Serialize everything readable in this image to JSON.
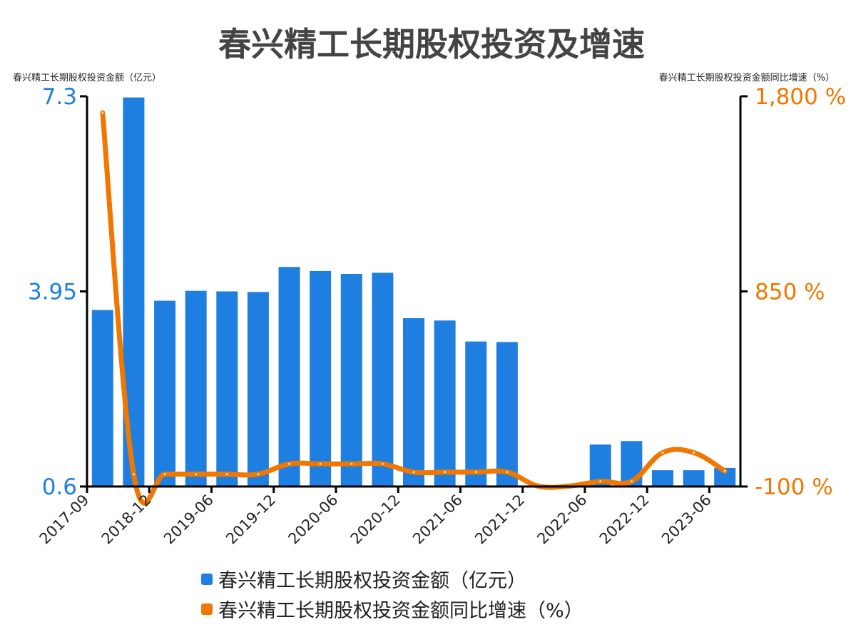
{
  "colors": {
    "bar": "#1f7fe0",
    "line": "#f07800",
    "axis": "#000000",
    "text": "#222222"
  },
  "chart_data": {
    "type": "bar",
    "title": "春兴精工长期股权投资及增速",
    "left_axis": {
      "label": "春兴精工长期股权投资金额（亿元）",
      "ylim": [
        0.6,
        7.3
      ],
      "ticks": [
        "0.6",
        "3.95",
        "7.3"
      ]
    },
    "right_axis": {
      "label": "春兴精工长期股权投资金额同比增速（%）",
      "ylim": [
        -100,
        1800
      ],
      "ticks": [
        "-100 %",
        "850 %",
        "1,800 %"
      ]
    },
    "x_tick_labels": [
      "2017-09",
      "2018-12",
      "2019-06",
      "2019-12",
      "2020-06",
      "2020-12",
      "2021-06",
      "2021-12",
      "2022-06",
      "2022-12",
      "2023-06"
    ],
    "bar_count": 21,
    "series": [
      {
        "name": "春兴精工长期股权投资金额（亿元）",
        "type": "bar",
        "axis": "left",
        "values": [
          3.63,
          7.28,
          3.79,
          3.96,
          3.95,
          3.94,
          4.37,
          4.3,
          4.25,
          4.27,
          3.49,
          3.45,
          3.09,
          3.08,
          null,
          null,
          1.32,
          1.38,
          0.88,
          0.88,
          0.92
        ]
      },
      {
        "name": "春兴精工长期股权投资金额同比增速（%）",
        "type": "line",
        "axis": "right",
        "values": [
          1720,
          -40,
          -40,
          -40,
          -40,
          -40,
          10,
          10,
          10,
          10,
          -30,
          -30,
          -30,
          -30,
          -98,
          -98,
          -75,
          -75,
          65,
          65,
          -25
        ]
      }
    ],
    "legend_position": "bottom"
  }
}
